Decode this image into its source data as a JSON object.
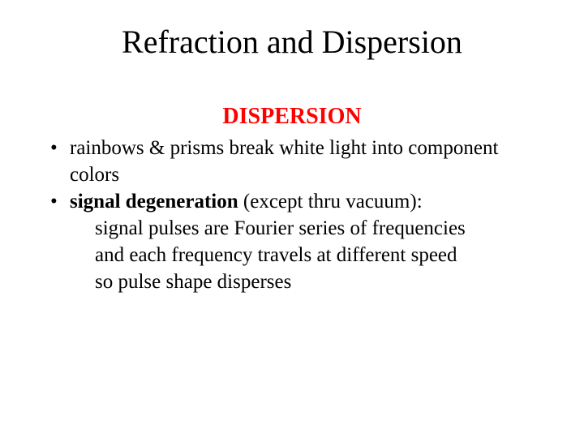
{
  "slide": {
    "title": "Refraction and Dispersion",
    "subtitle": "DISPERSION",
    "bullets": [
      {
        "text": "rainbows & prisms break white light into component colors"
      },
      {
        "bold_prefix": "signal degeneration",
        "rest": " (except thru vacuum):",
        "sublines": [
          "signal pulses are Fourier series of frequencies",
          "and each frequency travels at different speed",
          "so pulse shape disperses"
        ]
      }
    ]
  },
  "styling": {
    "title_fontsize": 40,
    "title_color": "#000000",
    "subtitle_fontsize": 28,
    "subtitle_color": "#ff0000",
    "body_fontsize": 25,
    "body_color": "#000000",
    "background_color": "#ffffff",
    "font_family": "Times New Roman"
  }
}
